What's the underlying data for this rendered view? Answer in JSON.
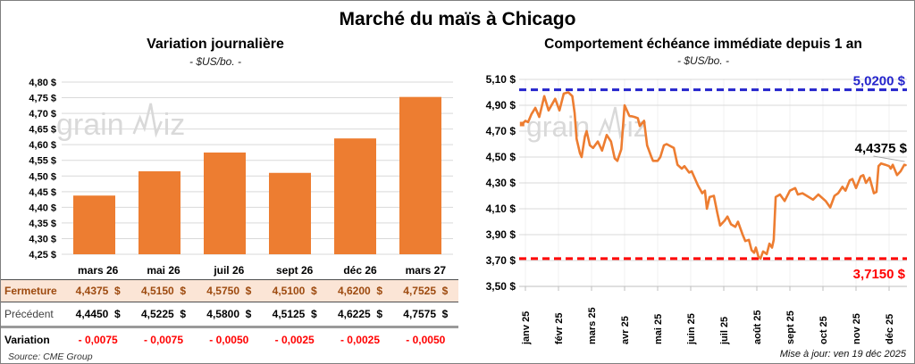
{
  "page": {
    "title": "Marché du maïs à Chicago",
    "source_note": "Source: CME Group",
    "update_note": "Mise à jour: ven 19 déc 2025",
    "watermark": {
      "pre": "grain",
      "post": "iz"
    }
  },
  "colors": {
    "accent_orange": "#ED7D31",
    "grid": "#D9D9D9",
    "axis": "#BFBFBF",
    "watermark": "#D9D9D9",
    "ref_high_blue": "#2424CC",
    "ref_low_red": "#FF0000",
    "fermeture_bg": "#FBE5D6",
    "fermeture_text": "#9D4A0F",
    "variation_text": "#FF0000"
  },
  "table": {
    "corner": "",
    "col_headers": [
      "mars 26",
      "mai 26",
      "juil 26",
      "sept 26",
      "déc 26",
      "mars 27"
    ],
    "rows": [
      {
        "key": "fermeture",
        "label": "Fermeture",
        "values": [
          "4,4375  $",
          "4,5150  $",
          "4,5750  $",
          "4,5100  $",
          "4,6200  $",
          "4,7525  $"
        ]
      },
      {
        "key": "precedent",
        "label": "Précédent",
        "values": [
          "4,4450  $",
          "4,5225  $",
          "4,5800  $",
          "4,5125  $",
          "4,6225  $",
          "4,7575  $"
        ]
      },
      {
        "key": "variation",
        "label": "Variation",
        "values": [
          "- 0,0075",
          "- 0,0075",
          "- 0,0050",
          "- 0,0025",
          "- 0,0025",
          "- 0,0050"
        ]
      }
    ]
  },
  "chart_data": [
    {
      "type": "bar",
      "title": "Variation journalière",
      "subtitle": "- $US/bo. -",
      "categories": [
        "mars 26",
        "mai 26",
        "juil 26",
        "sept 26",
        "déc 26",
        "mars 27"
      ],
      "values": [
        4.4375,
        4.515,
        4.575,
        4.51,
        4.62,
        4.7525
      ],
      "ylim": [
        4.25,
        4.8
      ],
      "ytick_values": [
        4.25,
        4.3,
        4.35,
        4.4,
        4.45,
        4.5,
        4.55,
        4.6,
        4.65,
        4.7,
        4.75,
        4.8
      ],
      "ytick_labels": [
        "4,25 $",
        "4,30 $",
        "4,35 $",
        "4,40 $",
        "4,45 $",
        "4,50 $",
        "4,55 $",
        "4,60 $",
        "4,65 $",
        "4,70 $",
        "4,75 $",
        "4,80 $"
      ],
      "grid": true
    },
    {
      "type": "line",
      "title": "Comportement échéance immédiate depuis 1 an",
      "subtitle": "- $US/bo. -",
      "ylim": [
        3.5,
        5.1
      ],
      "ytick_values": [
        3.5,
        3.7,
        3.9,
        4.1,
        4.3,
        4.5,
        4.7,
        4.9,
        5.1
      ],
      "ytick_labels": [
        "3,50 $",
        "3,70 $",
        "3,90 $",
        "4,10 $",
        "4,30 $",
        "4,50 $",
        "4,70 $",
        "4,90 $",
        "5,10 $"
      ],
      "x_labels": [
        "janv 25",
        "févr 25",
        "mars 25",
        "avr 25",
        "mai 25",
        "juin 25",
        "juil 25",
        "août 25",
        "sept 25",
        "oct 25",
        "nov 25",
        "déc 25"
      ],
      "grid": true,
      "ref_lines": [
        {
          "kind": "high",
          "value": 5.02,
          "label": "5,0200 $"
        },
        {
          "kind": "low",
          "value": 3.715,
          "label": "3,7150 $"
        }
      ],
      "last_point_label": "4,4375 $",
      "last_value": 4.4375,
      "series": [
        {
          "name": "échéance immédiate",
          "points": [
            [
              -0.1,
              4.755
            ],
            [
              0.0,
              4.78
            ],
            [
              0.08,
              4.77
            ],
            [
              0.18,
              4.83
            ],
            [
              0.3,
              4.88
            ],
            [
              0.42,
              4.81
            ],
            [
              0.57,
              4.97
            ],
            [
              0.7,
              4.86
            ],
            [
              0.9,
              4.95
            ],
            [
              1.03,
              4.86
            ],
            [
              1.16,
              4.99
            ],
            [
              1.3,
              5.0
            ],
            [
              1.42,
              4.97
            ],
            [
              1.49,
              4.84
            ],
            [
              1.55,
              4.64
            ],
            [
              1.65,
              4.53
            ],
            [
              1.7,
              4.5
            ],
            [
              1.8,
              4.66
            ],
            [
              1.85,
              4.7
            ],
            [
              1.95,
              4.59
            ],
            [
              2.05,
              4.57
            ],
            [
              2.19,
              4.62
            ],
            [
              2.32,
              4.55
            ],
            [
              2.46,
              4.67
            ],
            [
              2.59,
              4.62
            ],
            [
              2.7,
              4.49
            ],
            [
              2.78,
              4.47
            ],
            [
              2.9,
              4.56
            ],
            [
              3.0,
              4.9
            ],
            [
              3.14,
              4.82
            ],
            [
              3.3,
              4.81
            ],
            [
              3.4,
              4.8
            ],
            [
              3.46,
              4.74
            ],
            [
              3.59,
              4.78
            ],
            [
              3.68,
              4.59
            ],
            [
              3.81,
              4.5
            ],
            [
              3.86,
              4.47
            ],
            [
              4.0,
              4.47
            ],
            [
              4.08,
              4.5
            ],
            [
              4.19,
              4.59
            ],
            [
              4.27,
              4.6
            ],
            [
              4.49,
              4.57
            ],
            [
              4.6,
              4.44
            ],
            [
              4.73,
              4.41
            ],
            [
              4.81,
              4.43
            ],
            [
              4.95,
              4.38
            ],
            [
              5.03,
              4.39
            ],
            [
              5.22,
              4.28
            ],
            [
              5.35,
              4.22
            ],
            [
              5.43,
              4.24
            ],
            [
              5.49,
              4.1
            ],
            [
              5.57,
              4.19
            ],
            [
              5.7,
              4.2
            ],
            [
              5.81,
              4.06
            ],
            [
              5.89,
              3.97
            ],
            [
              6.03,
              4.01
            ],
            [
              6.11,
              4.04
            ],
            [
              6.22,
              3.98
            ],
            [
              6.35,
              3.96
            ],
            [
              6.43,
              4.0
            ],
            [
              6.57,
              3.9
            ],
            [
              6.65,
              3.85
            ],
            [
              6.76,
              3.86
            ],
            [
              6.84,
              3.78
            ],
            [
              6.92,
              3.76
            ],
            [
              6.97,
              3.8
            ],
            [
              7.05,
              3.73
            ],
            [
              7.11,
              3.715
            ],
            [
              7.19,
              3.77
            ],
            [
              7.3,
              3.75
            ],
            [
              7.38,
              3.83
            ],
            [
              7.46,
              3.8
            ],
            [
              7.51,
              3.86
            ],
            [
              7.57,
              4.19
            ],
            [
              7.7,
              4.21
            ],
            [
              7.84,
              4.16
            ],
            [
              8.0,
              4.24
            ],
            [
              8.16,
              4.26
            ],
            [
              8.24,
              4.21
            ],
            [
              8.38,
              4.22
            ],
            [
              8.51,
              4.2
            ],
            [
              8.7,
              4.17
            ],
            [
              8.86,
              4.21
            ],
            [
              9.08,
              4.16
            ],
            [
              9.22,
              4.11
            ],
            [
              9.35,
              4.2
            ],
            [
              9.46,
              4.22
            ],
            [
              9.59,
              4.27
            ],
            [
              9.68,
              4.24
            ],
            [
              9.81,
              4.32
            ],
            [
              9.89,
              4.33
            ],
            [
              10.0,
              4.26
            ],
            [
              10.14,
              4.35
            ],
            [
              10.22,
              4.36
            ],
            [
              10.3,
              4.3
            ],
            [
              10.41,
              4.34
            ],
            [
              10.54,
              4.22
            ],
            [
              10.62,
              4.23
            ],
            [
              10.68,
              4.43
            ],
            [
              10.76,
              4.45
            ],
            [
              10.89,
              4.44
            ],
            [
              11.0,
              4.43
            ],
            [
              11.05,
              4.41
            ],
            [
              11.11,
              4.44
            ],
            [
              11.24,
              4.36
            ],
            [
              11.35,
              4.39
            ],
            [
              11.46,
              4.44
            ],
            [
              11.5,
              4.4375
            ]
          ]
        }
      ]
    }
  ]
}
